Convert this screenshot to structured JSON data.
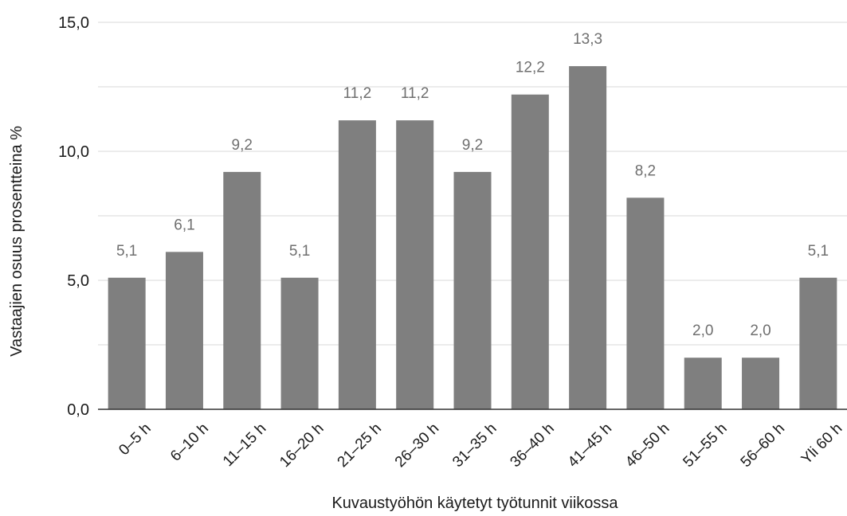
{
  "chart_data": {
    "type": "bar",
    "title": "",
    "xlabel": "Kuvaustyöhön käytetyt työtunnit viikossa",
    "ylabel": "Vastaajien osuus prosentteina %",
    "categories": [
      "0–5 h",
      "6–10 h",
      "11–15 h",
      "16–20 h",
      "21–25 h",
      "26–30 h",
      "31–35 h",
      "36–40 h",
      "41–45 h",
      "46–50 h",
      "51–55 h",
      "56–60 h",
      "Yli 60 h"
    ],
    "values": [
      5.1,
      6.1,
      9.2,
      5.1,
      11.2,
      11.2,
      9.2,
      12.2,
      13.3,
      8.2,
      2.0,
      2.0,
      5.1
    ],
    "data_labels": [
      "5,1",
      "6,1",
      "9,2",
      "5,1",
      "11,2",
      "11,2",
      "9,2",
      "12,2",
      "13,3",
      "8,2",
      "2,0",
      "2,0",
      "5,1"
    ],
    "ylim": [
      0,
      15
    ],
    "yticks": [
      0,
      5,
      10,
      15
    ],
    "ytick_labels": [
      "0,0",
      "5,0",
      "10,0",
      "15,0"
    ],
    "minor_gridlines": true,
    "legend": "none",
    "colors": {
      "bar": "#7f7f7f",
      "grid": "#d9d9d9",
      "axis": "#333333",
      "data_label": "#6f6f6f",
      "text": "#1a1a1a"
    }
  }
}
